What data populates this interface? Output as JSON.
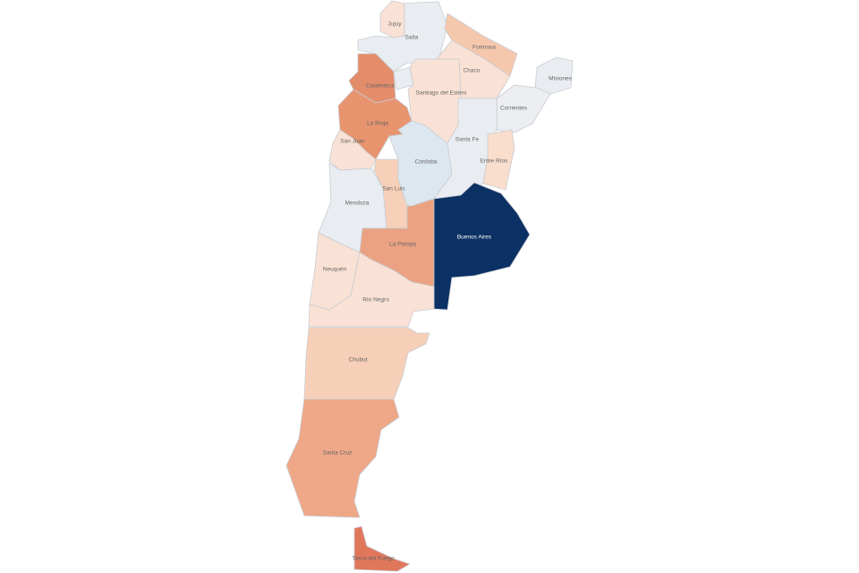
{
  "map": {
    "country": "Argentina",
    "colors": {
      "lowest": "#e9edf1",
      "light_blue": "#dde7f0",
      "pale_peach": "#f9e2d5",
      "peach": "#f5c8ae",
      "orange": "#eba283",
      "dark_orange": "#e38d6b",
      "highest": "#0c3165"
    },
    "provinces": {
      "jujuy": {
        "label": "Jujuy",
        "color": "#f9e2d5"
      },
      "salta": {
        "label": "Salta",
        "color": "#e9edf1"
      },
      "formosa": {
        "label": "Formosa",
        "color": "#f5c8ae"
      },
      "chaco": {
        "label": "Chaco",
        "color": "#f9e2d5"
      },
      "misiones": {
        "label": "Misiones",
        "color": "#e9edf1"
      },
      "corrientes": {
        "label": "Corrientes",
        "color": "#eceef1"
      },
      "catamarca": {
        "label": "Catamarca",
        "color": "#e38d6b"
      },
      "tucuman": {
        "label": "",
        "color": "#e9edf1"
      },
      "santiago": {
        "label": "Santiago del Estero",
        "color": "#f9e2d5"
      },
      "larioja": {
        "label": "La Rioja",
        "color": "#e8946f"
      },
      "sanjuan": {
        "label": "San Juan",
        "color": "#f9e2d5"
      },
      "cordoba": {
        "label": "Córdoba",
        "color": "#dde7f0"
      },
      "santafe": {
        "label": "Santa Fe",
        "color": "#e9edf1"
      },
      "entrerios": {
        "label": "Entre Ríos",
        "color": "#f9ddcd"
      },
      "sanluis": {
        "label": "San Luis",
        "color": "#f7d0b9"
      },
      "mendoza": {
        "label": "Mendoza",
        "color": "#e9edf1"
      },
      "lapampa": {
        "label": "La Pampa",
        "color": "#eba283"
      },
      "buenosaires": {
        "label": "Buenos Aires",
        "color": "#0c3165"
      },
      "neuquen": {
        "label": "Neuquén",
        "color": "#f9e2d5"
      },
      "rionegro": {
        "label": "Río Negro",
        "color": "#f9e2d5"
      },
      "chubut": {
        "label": "Chubut",
        "color": "#f6cfb8"
      },
      "santacruz": {
        "label": "Santa Cruz",
        "color": "#eea888"
      },
      "tierradelfuego": {
        "label": "Tierra del Fuego",
        "color": "#e0775a"
      }
    }
  }
}
